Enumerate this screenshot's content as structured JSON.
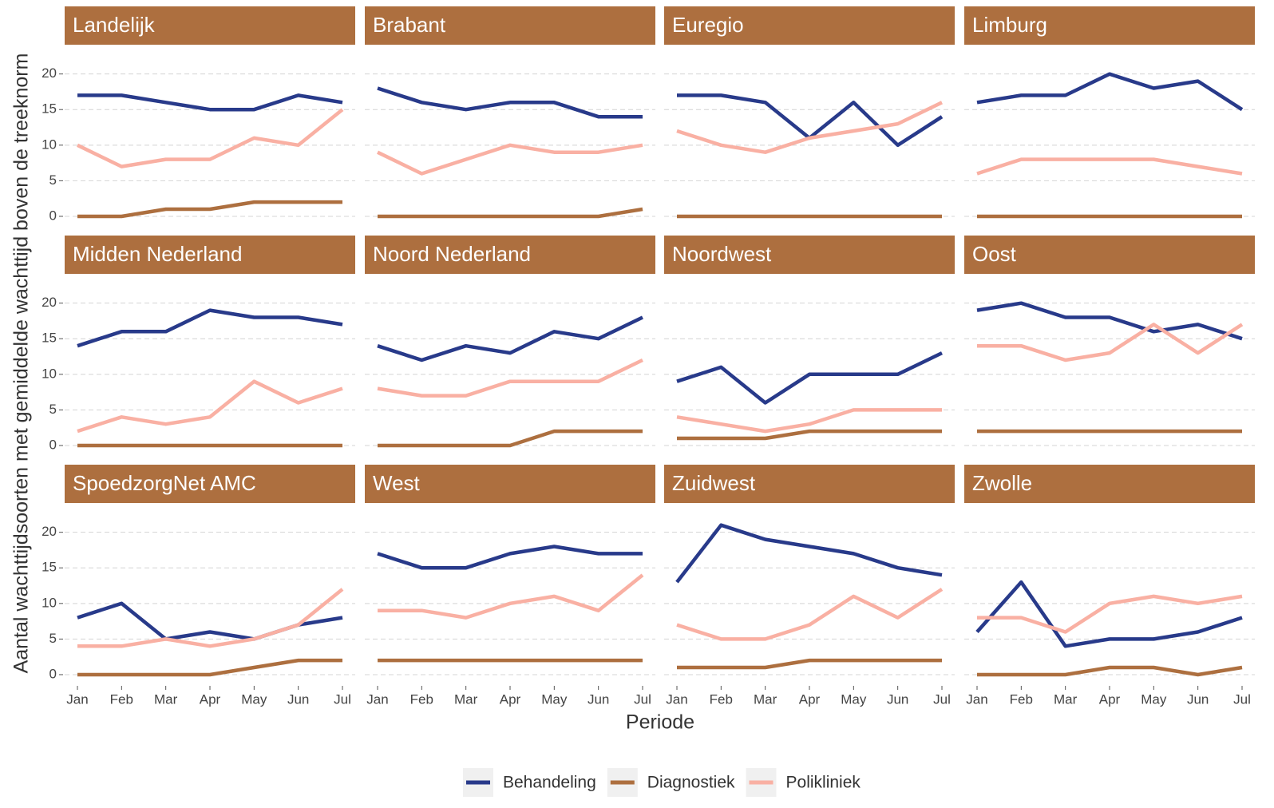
{
  "chart_data": [
    {
      "type": "line",
      "title": "Landelijk",
      "categories": [
        "Jan",
        "Feb",
        "Mar",
        "Apr",
        "May",
        "Jun",
        "Jul"
      ],
      "ylim": [
        -1.35,
        24
      ],
      "yticks": [
        0,
        5,
        10,
        15,
        20
      ],
      "grid": true,
      "series": [
        {
          "name": "Behandeling",
          "color": "#283a8a",
          "values": [
            17,
            17,
            16,
            15,
            15,
            17,
            16
          ]
        },
        {
          "name": "Diagnostiek",
          "color": "#ad6f3f",
          "values": [
            0,
            0,
            1,
            1,
            2,
            2,
            2
          ]
        },
        {
          "name": "Polikliniek",
          "color": "#f9b0a3",
          "values": [
            10,
            7,
            8,
            8,
            11,
            10,
            15
          ]
        }
      ]
    },
    {
      "type": "line",
      "title": "Brabant",
      "categories": [
        "Jan",
        "Feb",
        "Mar",
        "Apr",
        "May",
        "Jun",
        "Jul"
      ],
      "ylim": [
        -1.35,
        24
      ],
      "yticks": [
        0,
        5,
        10,
        15,
        20
      ],
      "grid": true,
      "series": [
        {
          "name": "Behandeling",
          "color": "#283a8a",
          "values": [
            18,
            16,
            15,
            16,
            16,
            14,
            14
          ]
        },
        {
          "name": "Diagnostiek",
          "color": "#ad6f3f",
          "values": [
            0,
            0,
            0,
            0,
            0,
            0,
            1
          ]
        },
        {
          "name": "Polikliniek",
          "color": "#f9b0a3",
          "values": [
            9,
            6,
            8,
            10,
            9,
            9,
            10
          ]
        }
      ]
    },
    {
      "type": "line",
      "title": "Euregio",
      "categories": [
        "Jan",
        "Feb",
        "Mar",
        "Apr",
        "May",
        "Jun",
        "Jul"
      ],
      "ylim": [
        -1.35,
        24
      ],
      "yticks": [
        0,
        5,
        10,
        15,
        20
      ],
      "grid": true,
      "series": [
        {
          "name": "Behandeling",
          "color": "#283a8a",
          "values": [
            17,
            17,
            16,
            11,
            16,
            10,
            14
          ]
        },
        {
          "name": "Diagnostiek",
          "color": "#ad6f3f",
          "values": [
            0,
            0,
            0,
            0,
            0,
            0,
            0
          ]
        },
        {
          "name": "Polikliniek",
          "color": "#f9b0a3",
          "values": [
            12,
            10,
            9,
            11,
            12,
            13,
            16
          ]
        }
      ]
    },
    {
      "type": "line",
      "title": "Limburg",
      "categories": [
        "Jan",
        "Feb",
        "Mar",
        "Apr",
        "May",
        "Jun",
        "Jul"
      ],
      "ylim": [
        -1.35,
        24
      ],
      "yticks": [
        0,
        5,
        10,
        15,
        20
      ],
      "grid": true,
      "series": [
        {
          "name": "Behandeling",
          "color": "#283a8a",
          "values": [
            16,
            17,
            17,
            20,
            18,
            19,
            15
          ]
        },
        {
          "name": "Diagnostiek",
          "color": "#ad6f3f",
          "values": [
            0,
            0,
            0,
            0,
            0,
            0,
            0
          ]
        },
        {
          "name": "Polikliniek",
          "color": "#f9b0a3",
          "values": [
            6,
            8,
            8,
            8,
            8,
            7,
            6
          ]
        }
      ]
    },
    {
      "type": "line",
      "title": "Midden Nederland",
      "categories": [
        "Jan",
        "Feb",
        "Mar",
        "Apr",
        "May",
        "Jun",
        "Jul"
      ],
      "ylim": [
        -1.35,
        24
      ],
      "yticks": [
        0,
        5,
        10,
        15,
        20
      ],
      "grid": true,
      "series": [
        {
          "name": "Behandeling",
          "color": "#283a8a",
          "values": [
            14,
            16,
            16,
            19,
            18,
            18,
            17
          ]
        },
        {
          "name": "Diagnostiek",
          "color": "#ad6f3f",
          "values": [
            0,
            0,
            0,
            0,
            0,
            0,
            0
          ]
        },
        {
          "name": "Polikliniek",
          "color": "#f9b0a3",
          "values": [
            2,
            4,
            3,
            4,
            9,
            6,
            8
          ]
        }
      ]
    },
    {
      "type": "line",
      "title": "Noord Nederland",
      "categories": [
        "Jan",
        "Feb",
        "Mar",
        "Apr",
        "May",
        "Jun",
        "Jul"
      ],
      "ylim": [
        -1.35,
        24
      ],
      "yticks": [
        0,
        5,
        10,
        15,
        20
      ],
      "grid": true,
      "series": [
        {
          "name": "Behandeling",
          "color": "#283a8a",
          "values": [
            14,
            12,
            14,
            13,
            16,
            15,
            18
          ]
        },
        {
          "name": "Diagnostiek",
          "color": "#ad6f3f",
          "values": [
            0,
            0,
            0,
            0,
            2,
            2,
            2
          ]
        },
        {
          "name": "Polikliniek",
          "color": "#f9b0a3",
          "values": [
            8,
            7,
            7,
            9,
            9,
            9,
            12
          ]
        }
      ]
    },
    {
      "type": "line",
      "title": "Noordwest",
      "categories": [
        "Jan",
        "Feb",
        "Mar",
        "Apr",
        "May",
        "Jun",
        "Jul"
      ],
      "ylim": [
        -1.35,
        24
      ],
      "yticks": [
        0,
        5,
        10,
        15,
        20
      ],
      "grid": true,
      "series": [
        {
          "name": "Behandeling",
          "color": "#283a8a",
          "values": [
            9,
            11,
            6,
            10,
            10,
            10,
            13
          ]
        },
        {
          "name": "Diagnostiek",
          "color": "#ad6f3f",
          "values": [
            1,
            1,
            1,
            2,
            2,
            2,
            2
          ]
        },
        {
          "name": "Polikliniek",
          "color": "#f9b0a3",
          "values": [
            4,
            3,
            2,
            3,
            5,
            5,
            5
          ]
        }
      ]
    },
    {
      "type": "line",
      "title": "Oost",
      "categories": [
        "Jan",
        "Feb",
        "Mar",
        "Apr",
        "May",
        "Jun",
        "Jul"
      ],
      "ylim": [
        -1.35,
        24
      ],
      "yticks": [
        0,
        5,
        10,
        15,
        20
      ],
      "grid": true,
      "series": [
        {
          "name": "Behandeling",
          "color": "#283a8a",
          "values": [
            19,
            20,
            18,
            18,
            16,
            17,
            15
          ]
        },
        {
          "name": "Diagnostiek",
          "color": "#ad6f3f",
          "values": [
            2,
            2,
            2,
            2,
            2,
            2,
            2
          ]
        },
        {
          "name": "Polikliniek",
          "color": "#f9b0a3",
          "values": [
            14,
            14,
            12,
            13,
            17,
            13,
            17
          ]
        }
      ]
    },
    {
      "type": "line",
      "title": "SpoedzorgNet AMC",
      "categories": [
        "Jan",
        "Feb",
        "Mar",
        "Apr",
        "May",
        "Jun",
        "Jul"
      ],
      "ylim": [
        -1.35,
        24
      ],
      "yticks": [
        0,
        5,
        10,
        15,
        20
      ],
      "grid": true,
      "series": [
        {
          "name": "Behandeling",
          "color": "#283a8a",
          "values": [
            8,
            10,
            5,
            6,
            5,
            7,
            8
          ]
        },
        {
          "name": "Diagnostiek",
          "color": "#ad6f3f",
          "values": [
            0,
            0,
            0,
            0,
            1,
            2,
            2
          ]
        },
        {
          "name": "Polikliniek",
          "color": "#f9b0a3",
          "values": [
            4,
            4,
            5,
            4,
            5,
            7,
            12
          ]
        }
      ]
    },
    {
      "type": "line",
      "title": "West",
      "categories": [
        "Jan",
        "Feb",
        "Mar",
        "Apr",
        "May",
        "Jun",
        "Jul"
      ],
      "ylim": [
        -1.35,
        24
      ],
      "yticks": [
        0,
        5,
        10,
        15,
        20
      ],
      "grid": true,
      "series": [
        {
          "name": "Behandeling",
          "color": "#283a8a",
          "values": [
            17,
            15,
            15,
            17,
            18,
            17,
            17
          ]
        },
        {
          "name": "Diagnostiek",
          "color": "#ad6f3f",
          "values": [
            2,
            2,
            2,
            2,
            2,
            2,
            2
          ]
        },
        {
          "name": "Polikliniek",
          "color": "#f9b0a3",
          "values": [
            9,
            9,
            8,
            10,
            11,
            9,
            14
          ]
        }
      ]
    },
    {
      "type": "line",
      "title": "Zuidwest",
      "categories": [
        "Jan",
        "Feb",
        "Mar",
        "Apr",
        "May",
        "Jun",
        "Jul"
      ],
      "ylim": [
        -1.35,
        24
      ],
      "yticks": [
        0,
        5,
        10,
        15,
        20
      ],
      "grid": true,
      "series": [
        {
          "name": "Behandeling",
          "color": "#283a8a",
          "values": [
            13,
            21,
            19,
            18,
            17,
            15,
            14
          ]
        },
        {
          "name": "Diagnostiek",
          "color": "#ad6f3f",
          "values": [
            1,
            1,
            1,
            2,
            2,
            2,
            2
          ]
        },
        {
          "name": "Polikliniek",
          "color": "#f9b0a3",
          "values": [
            7,
            5,
            5,
            7,
            11,
            8,
            12
          ]
        }
      ]
    },
    {
      "type": "line",
      "title": "Zwolle",
      "categories": [
        "Jan",
        "Feb",
        "Mar",
        "Apr",
        "May",
        "Jun",
        "Jul"
      ],
      "ylim": [
        -1.35,
        24
      ],
      "yticks": [
        0,
        5,
        10,
        15,
        20
      ],
      "grid": true,
      "series": [
        {
          "name": "Behandeling",
          "color": "#283a8a",
          "values": [
            6,
            13,
            4,
            5,
            5,
            6,
            8
          ]
        },
        {
          "name": "Diagnostiek",
          "color": "#ad6f3f",
          "values": [
            0,
            0,
            0,
            1,
            1,
            0,
            1
          ]
        },
        {
          "name": "Polikliniek",
          "color": "#f9b0a3",
          "values": [
            8,
            8,
            6,
            10,
            11,
            10,
            11
          ]
        }
      ]
    }
  ],
  "y_label": "Aantal wachttijdsoorten met gemiddelde wachttijd boven de treeknorm",
  "x_label": "Periode"
}
